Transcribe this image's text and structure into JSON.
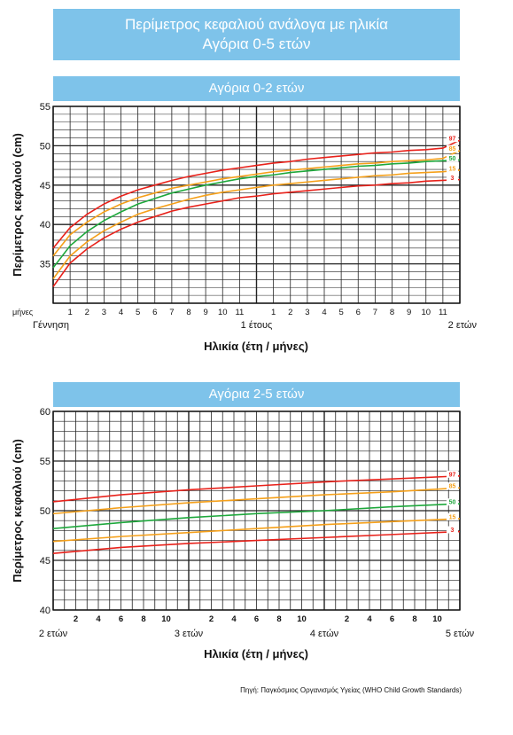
{
  "title_line1": "Περίμετρος κεφαλιού ανάλογα με ηλικία",
  "title_line2": "Αγόρια 0-5 ετών",
  "source": "Πηγή: Παγκόσμιος Οργανισμός Υγείας (WHO Child Growth Standards)",
  "colors": {
    "band": "#7ec3ea",
    "red": "#e8221b",
    "orange": "#f5a01a",
    "green": "#1ea83c"
  },
  "chart_data": [
    {
      "type": "line",
      "title": "Αγόρια 0-2 ετών",
      "xlabel": "Ηλικία (έτη / μήνες)",
      "ylabel": "Περίμετρος κεφαλιού (cm)",
      "xlim": [
        0,
        24
      ],
      "ylim": [
        30,
        55
      ],
      "yticks": [
        35,
        40,
        45,
        50,
        55
      ],
      "grid": true,
      "month_row_label": "μήνες",
      "month_ticks": [
        "1",
        "2",
        "3",
        "4",
        "5",
        "6",
        "7",
        "8",
        "9",
        "10",
        "11",
        "1",
        "2",
        "3",
        "4",
        "5",
        "6",
        "7",
        "8",
        "9",
        "10",
        "11"
      ],
      "year_labels": [
        {
          "x": 0,
          "text": "Γέννηση"
        },
        {
          "x": 12,
          "text": "1 έτους"
        },
        {
          "x": 24,
          "text": "2 ετών"
        }
      ],
      "x": [
        0,
        1,
        2,
        3,
        4,
        5,
        6,
        7,
        8,
        9,
        10,
        11,
        12,
        13,
        14,
        15,
        16,
        17,
        18,
        19,
        20,
        21,
        22,
        23,
        24
      ],
      "series": [
        {
          "name": "97",
          "color": "#e8221b",
          "values": [
            37.0,
            39.6,
            41.3,
            42.6,
            43.6,
            44.4,
            45.0,
            45.6,
            46.1,
            46.5,
            46.9,
            47.2,
            47.5,
            47.8,
            48.0,
            48.3,
            48.5,
            48.7,
            48.9,
            49.1,
            49.2,
            49.4,
            49.5,
            49.7,
            50.7
          ]
        },
        {
          "name": "85",
          "color": "#f5a01a",
          "values": [
            36.0,
            38.7,
            40.3,
            41.6,
            42.6,
            43.4,
            44.0,
            44.6,
            45.0,
            45.4,
            45.8,
            46.1,
            46.4,
            46.7,
            46.9,
            47.1,
            47.3,
            47.5,
            47.7,
            47.8,
            48.0,
            48.1,
            48.2,
            48.4,
            49.4
          ]
        },
        {
          "name": "50",
          "color": "#1ea83c",
          "values": [
            34.5,
            37.3,
            39.1,
            40.5,
            41.6,
            42.6,
            43.3,
            44.0,
            44.5,
            45.0,
            45.4,
            45.8,
            46.1,
            46.3,
            46.6,
            46.8,
            47.0,
            47.2,
            47.4,
            47.5,
            47.7,
            47.8,
            48.0,
            48.1,
            48.2
          ]
        },
        {
          "name": "15",
          "color": "#f5a01a",
          "values": [
            33.1,
            36.0,
            37.8,
            39.2,
            40.3,
            41.3,
            42.0,
            42.6,
            43.2,
            43.7,
            44.1,
            44.4,
            44.7,
            45.0,
            45.2,
            45.4,
            45.6,
            45.8,
            46.0,
            46.2,
            46.3,
            46.5,
            46.6,
            46.7,
            46.9
          ]
        },
        {
          "name": "3",
          "color": "#e8221b",
          "values": [
            32.1,
            35.1,
            36.9,
            38.3,
            39.4,
            40.3,
            41.0,
            41.7,
            42.2,
            42.6,
            43.0,
            43.4,
            43.6,
            43.9,
            44.1,
            44.3,
            44.5,
            44.7,
            44.9,
            45.0,
            45.2,
            45.3,
            45.5,
            45.6,
            45.7
          ]
        }
      ]
    },
    {
      "type": "line",
      "title": "Αγόρια 2-5 ετών",
      "xlabel": "Ηλικία (έτη / μήνες)",
      "ylabel": "Περίμετρος κεφαλιού (cm)",
      "xlim": [
        24,
        60
      ],
      "ylim": [
        40,
        60
      ],
      "yticks": [
        40,
        45,
        50,
        55,
        60
      ],
      "grid": true,
      "month_ticks": [
        {
          "x": 26,
          "text": "2"
        },
        {
          "x": 28,
          "text": "4"
        },
        {
          "x": 30,
          "text": "6"
        },
        {
          "x": 32,
          "text": "8"
        },
        {
          "x": 34,
          "text": "10"
        },
        {
          "x": 38,
          "text": "2"
        },
        {
          "x": 40,
          "text": "4"
        },
        {
          "x": 42,
          "text": "6"
        },
        {
          "x": 44,
          "text": "8"
        },
        {
          "x": 46,
          "text": "10"
        },
        {
          "x": 50,
          "text": "2"
        },
        {
          "x": 52,
          "text": "4"
        },
        {
          "x": 54,
          "text": "6"
        },
        {
          "x": 56,
          "text": "8"
        },
        {
          "x": 58,
          "text": "10"
        }
      ],
      "year_labels": [
        {
          "x": 24,
          "text": "2 ετών"
        },
        {
          "x": 36,
          "text": "3 ετών"
        },
        {
          "x": 48,
          "text": "4 ετών"
        },
        {
          "x": 60,
          "text": "5 ετών"
        }
      ],
      "x": [
        24,
        30,
        36,
        42,
        48,
        54,
        60
      ],
      "series": [
        {
          "name": "97",
          "color": "#e8221b",
          "values": [
            50.9,
            51.6,
            52.1,
            52.5,
            52.9,
            53.2,
            53.5
          ]
        },
        {
          "name": "85",
          "color": "#f5a01a",
          "values": [
            49.7,
            50.3,
            50.8,
            51.2,
            51.6,
            51.9,
            52.3
          ]
        },
        {
          "name": "50",
          "color": "#1ea83c",
          "values": [
            48.2,
            48.8,
            49.3,
            49.7,
            50.0,
            50.4,
            50.7
          ]
        },
        {
          "name": "15",
          "color": "#f5a01a",
          "values": [
            46.9,
            47.4,
            47.8,
            48.2,
            48.6,
            48.9,
            49.2
          ]
        },
        {
          "name": "3",
          "color": "#e8221b",
          "values": [
            45.7,
            46.3,
            46.7,
            47.0,
            47.3,
            47.6,
            47.9
          ]
        }
      ]
    }
  ]
}
